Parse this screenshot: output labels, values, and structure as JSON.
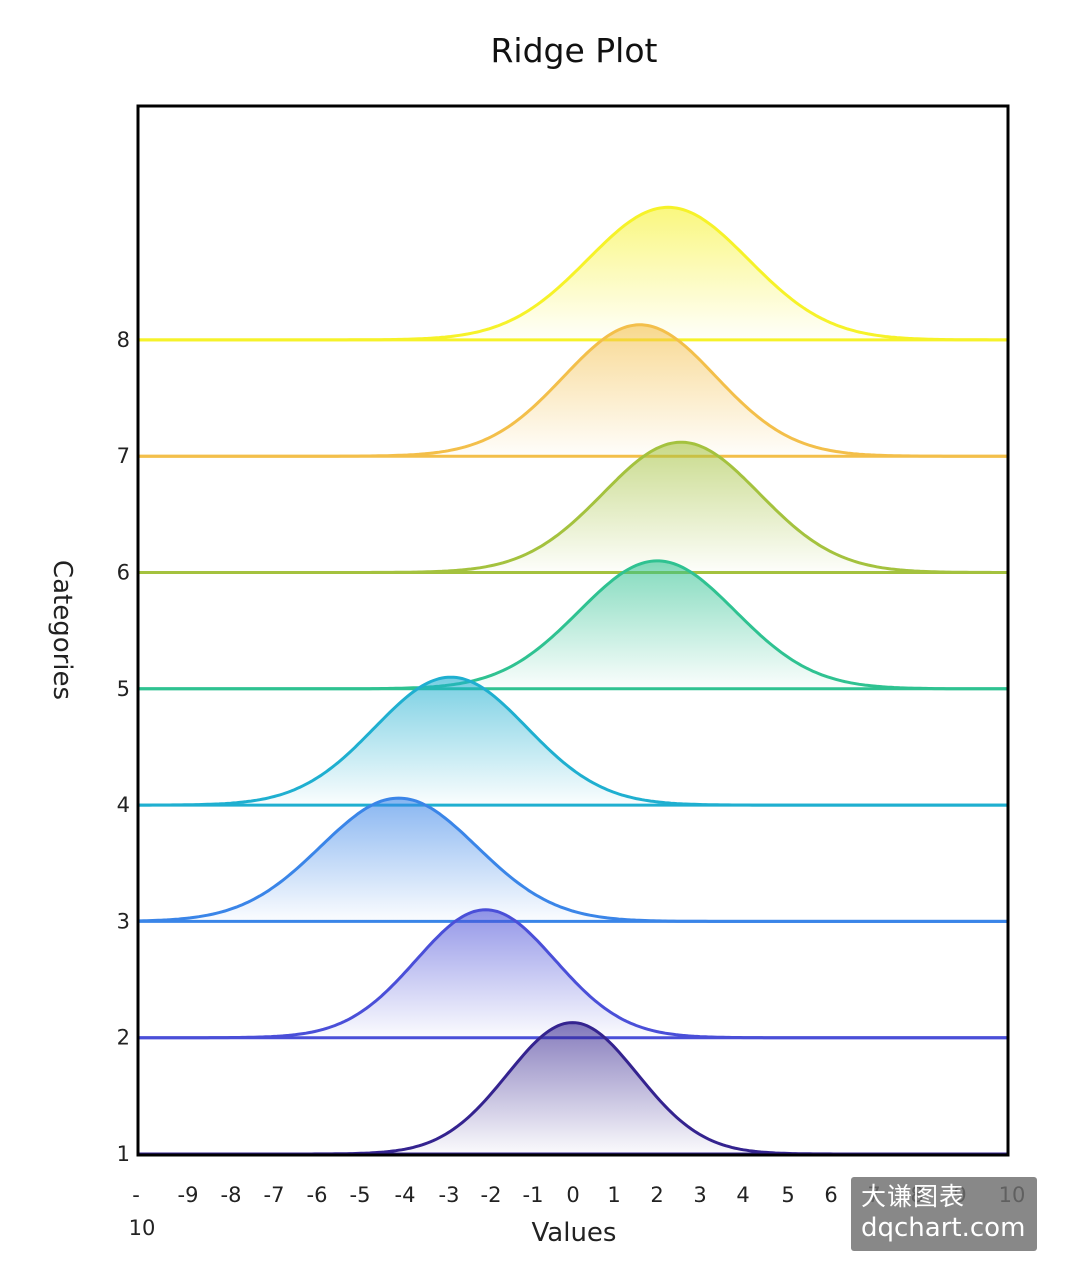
{
  "chart_data": {
    "type": "area",
    "title": "Ridge Plot",
    "xlabel": "Values",
    "ylabel": "Categories",
    "xlim": [
      -10,
      10
    ],
    "x_ticks": [
      -10,
      -9,
      -8,
      -7,
      -6,
      -5,
      -4,
      -3,
      -2,
      -1,
      0,
      1,
      2,
      3,
      4,
      5,
      6,
      7,
      8,
      9,
      10
    ],
    "x_tick_labels": [
      "-\n10",
      "-9",
      "-8",
      "-7",
      "-6",
      "-5",
      "-4",
      "-3",
      "-2",
      "-1",
      "0",
      "1",
      "2",
      "3",
      "4",
      "5",
      "6",
      "7",
      "8",
      "9",
      "10"
    ],
    "categories": [
      "1",
      "2",
      "3",
      "4",
      "5",
      "6",
      "7",
      "8"
    ],
    "series": [
      {
        "category": "1",
        "mean": 0.0,
        "std": 1.5,
        "peak_height": 1.13,
        "color": "#34238f"
      },
      {
        "category": "2",
        "mean": -2.0,
        "std": 1.6,
        "peak_height": 1.1,
        "color": "#4a4fd8"
      },
      {
        "category": "3",
        "mean": -4.0,
        "std": 1.8,
        "peak_height": 1.06,
        "color": "#3a85e8"
      },
      {
        "category": "4",
        "mean": -2.8,
        "std": 1.75,
        "peak_height": 1.1,
        "color": "#1fafd0"
      },
      {
        "category": "5",
        "mean": 1.95,
        "std": 1.8,
        "peak_height": 1.1,
        "color": "#2fc291"
      },
      {
        "category": "6",
        "mean": 2.5,
        "std": 1.8,
        "peak_height": 1.12,
        "color": "#a4c23e"
      },
      {
        "category": "7",
        "mean": 1.55,
        "std": 1.75,
        "peak_height": 1.13,
        "color": "#f3bf4a"
      },
      {
        "category": "8",
        "mean": 2.2,
        "std": 1.85,
        "peak_height": 1.14,
        "color": "#f6f229"
      }
    ],
    "grid": false,
    "legend": "none"
  },
  "watermark": {
    "line1": "大谦图表",
    "line2": "dqchart.com"
  }
}
